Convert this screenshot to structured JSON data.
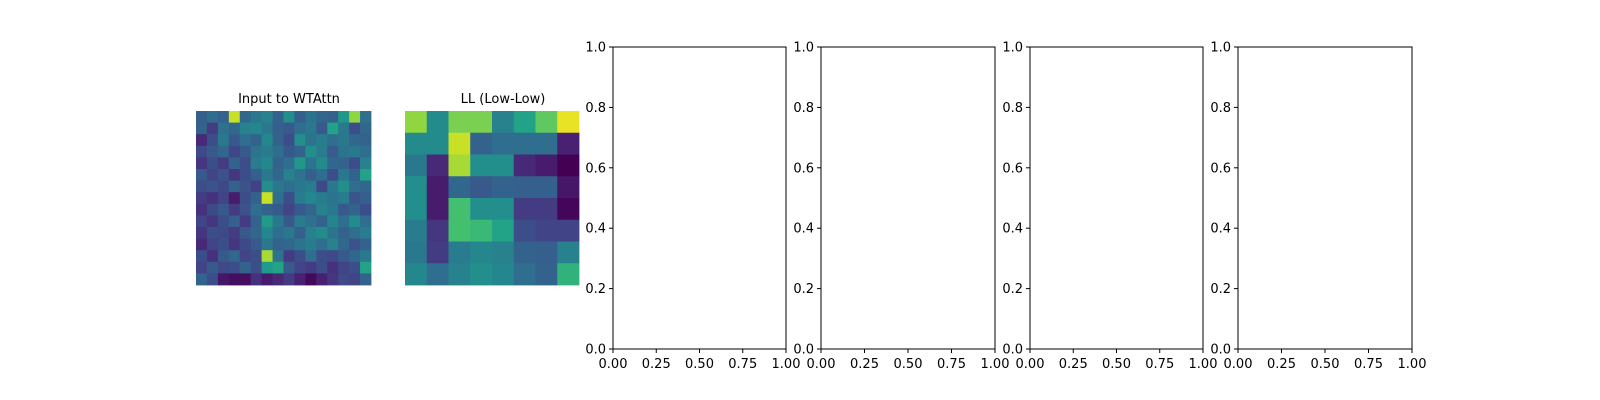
{
  "chart_data": [
    {
      "type": "heatmap",
      "title": "Input to WTAttn",
      "colormap": "viridis",
      "axes_visible": false,
      "values": [
        [
          0.38,
          0.44,
          0.4,
          0.95,
          0.42,
          0.5,
          0.55,
          0.4,
          0.62,
          0.38,
          0.48,
          0.42,
          0.4,
          0.66,
          0.9,
          0.46
        ],
        [
          0.4,
          0.22,
          0.46,
          0.42,
          0.55,
          0.58,
          0.5,
          0.38,
          0.35,
          0.45,
          0.5,
          0.35,
          0.72,
          0.5,
          0.3,
          0.42
        ],
        [
          0.15,
          0.3,
          0.5,
          0.35,
          0.45,
          0.4,
          0.58,
          0.4,
          0.3,
          0.62,
          0.48,
          0.52,
          0.45,
          0.5,
          0.42,
          0.4
        ],
        [
          0.28,
          0.35,
          0.42,
          0.26,
          0.35,
          0.48,
          0.52,
          0.45,
          0.35,
          0.4,
          0.62,
          0.52,
          0.36,
          0.48,
          0.5,
          0.45
        ],
        [
          0.2,
          0.3,
          0.22,
          0.4,
          0.3,
          0.52,
          0.58,
          0.4,
          0.45,
          0.66,
          0.48,
          0.6,
          0.42,
          0.4,
          0.3,
          0.55
        ],
        [
          0.35,
          0.25,
          0.32,
          0.2,
          0.3,
          0.38,
          0.5,
          0.42,
          0.55,
          0.48,
          0.38,
          0.45,
          0.3,
          0.5,
          0.4,
          0.72
        ],
        [
          0.3,
          0.32,
          0.28,
          0.4,
          0.32,
          0.24,
          0.62,
          0.5,
          0.45,
          0.5,
          0.52,
          0.28,
          0.5,
          0.62,
          0.45,
          0.42
        ],
        [
          0.22,
          0.18,
          0.25,
          0.1,
          0.3,
          0.4,
          0.95,
          0.45,
          0.3,
          0.52,
          0.58,
          0.52,
          0.48,
          0.52,
          0.32,
          0.38
        ],
        [
          0.18,
          0.28,
          0.35,
          0.22,
          0.32,
          0.45,
          0.4,
          0.35,
          0.25,
          0.35,
          0.42,
          0.55,
          0.5,
          0.35,
          0.4,
          0.3
        ],
        [
          0.25,
          0.2,
          0.3,
          0.38,
          0.22,
          0.4,
          0.68,
          0.5,
          0.35,
          0.52,
          0.46,
          0.4,
          0.56,
          0.45,
          0.6,
          0.45
        ],
        [
          0.2,
          0.3,
          0.28,
          0.22,
          0.35,
          0.42,
          0.58,
          0.45,
          0.5,
          0.38,
          0.55,
          0.6,
          0.48,
          0.4,
          0.45,
          0.52
        ],
        [
          0.15,
          0.25,
          0.3,
          0.2,
          0.28,
          0.35,
          0.5,
          0.4,
          0.42,
          0.48,
          0.52,
          0.45,
          0.55,
          0.42,
          0.32,
          0.4
        ],
        [
          0.3,
          0.18,
          0.35,
          0.42,
          0.25,
          0.3,
          0.92,
          0.48,
          0.22,
          0.3,
          0.45,
          0.3,
          0.28,
          0.35,
          0.42,
          0.5
        ],
        [
          0.25,
          0.35,
          0.28,
          0.3,
          0.4,
          0.3,
          0.68,
          0.72,
          0.35,
          0.25,
          0.22,
          0.3,
          0.18,
          0.25,
          0.3,
          0.72
        ],
        [
          0.4,
          0.3,
          0.08,
          0.05,
          0.05,
          0.18,
          0.1,
          0.15,
          0.22,
          0.12,
          0.03,
          0.12,
          0.2,
          0.28,
          0.25,
          0.4
        ]
      ]
    },
    {
      "type": "heatmap",
      "title": "LL (Low-Low)",
      "colormap": "viridis",
      "axes_visible": false,
      "values": [
        [
          0.9,
          0.6,
          0.88,
          0.88,
          0.55,
          0.72,
          0.85,
          0.98
        ],
        [
          0.6,
          0.6,
          0.95,
          0.4,
          0.45,
          0.45,
          0.45,
          0.12
        ],
        [
          0.5,
          0.15,
          0.92,
          0.62,
          0.62,
          0.15,
          0.1,
          0.0
        ],
        [
          0.62,
          0.1,
          0.42,
          0.35,
          0.4,
          0.38,
          0.38,
          0.08
        ],
        [
          0.62,
          0.1,
          0.82,
          0.62,
          0.62,
          0.22,
          0.22,
          0.02
        ],
        [
          0.52,
          0.2,
          0.82,
          0.8,
          0.72,
          0.3,
          0.25,
          0.25
        ],
        [
          0.5,
          0.22,
          0.52,
          0.58,
          0.55,
          0.4,
          0.38,
          0.55
        ],
        [
          0.58,
          0.45,
          0.55,
          0.62,
          0.58,
          0.45,
          0.4,
          0.78
        ]
      ]
    },
    {
      "type": "scatter",
      "title": "",
      "series": [],
      "xlim": [
        0.0,
        1.0
      ],
      "ylim": [
        0.0,
        1.0
      ],
      "xticks": [
        "0.00",
        "0.25",
        "0.50",
        "0.75",
        "1.00"
      ],
      "yticks": [
        "0.0",
        "0.2",
        "0.4",
        "0.6",
        "0.8",
        "1.0"
      ],
      "grid": false
    },
    {
      "type": "scatter",
      "title": "",
      "series": [],
      "xlim": [
        0.0,
        1.0
      ],
      "ylim": [
        0.0,
        1.0
      ],
      "xticks": [
        "0.00",
        "0.25",
        "0.50",
        "0.75",
        "1.00"
      ],
      "yticks": [
        "0.0",
        "0.2",
        "0.4",
        "0.6",
        "0.8",
        "1.0"
      ],
      "grid": false
    },
    {
      "type": "scatter",
      "title": "",
      "series": [],
      "xlim": [
        0.0,
        1.0
      ],
      "ylim": [
        0.0,
        1.0
      ],
      "xticks": [
        "0.00",
        "0.25",
        "0.50",
        "0.75",
        "1.00"
      ],
      "yticks": [
        "0.0",
        "0.2",
        "0.4",
        "0.6",
        "0.8",
        "1.0"
      ],
      "grid": false
    },
    {
      "type": "scatter",
      "title": "",
      "series": [],
      "xlim": [
        0.0,
        1.0
      ],
      "ylim": [
        0.0,
        1.0
      ],
      "xticks": [
        "0.00",
        "0.25",
        "0.50",
        "0.75",
        "1.00"
      ],
      "yticks": [
        "0.0",
        "0.2",
        "0.4",
        "0.6",
        "0.8",
        "1.0"
      ],
      "grid": false
    }
  ]
}
